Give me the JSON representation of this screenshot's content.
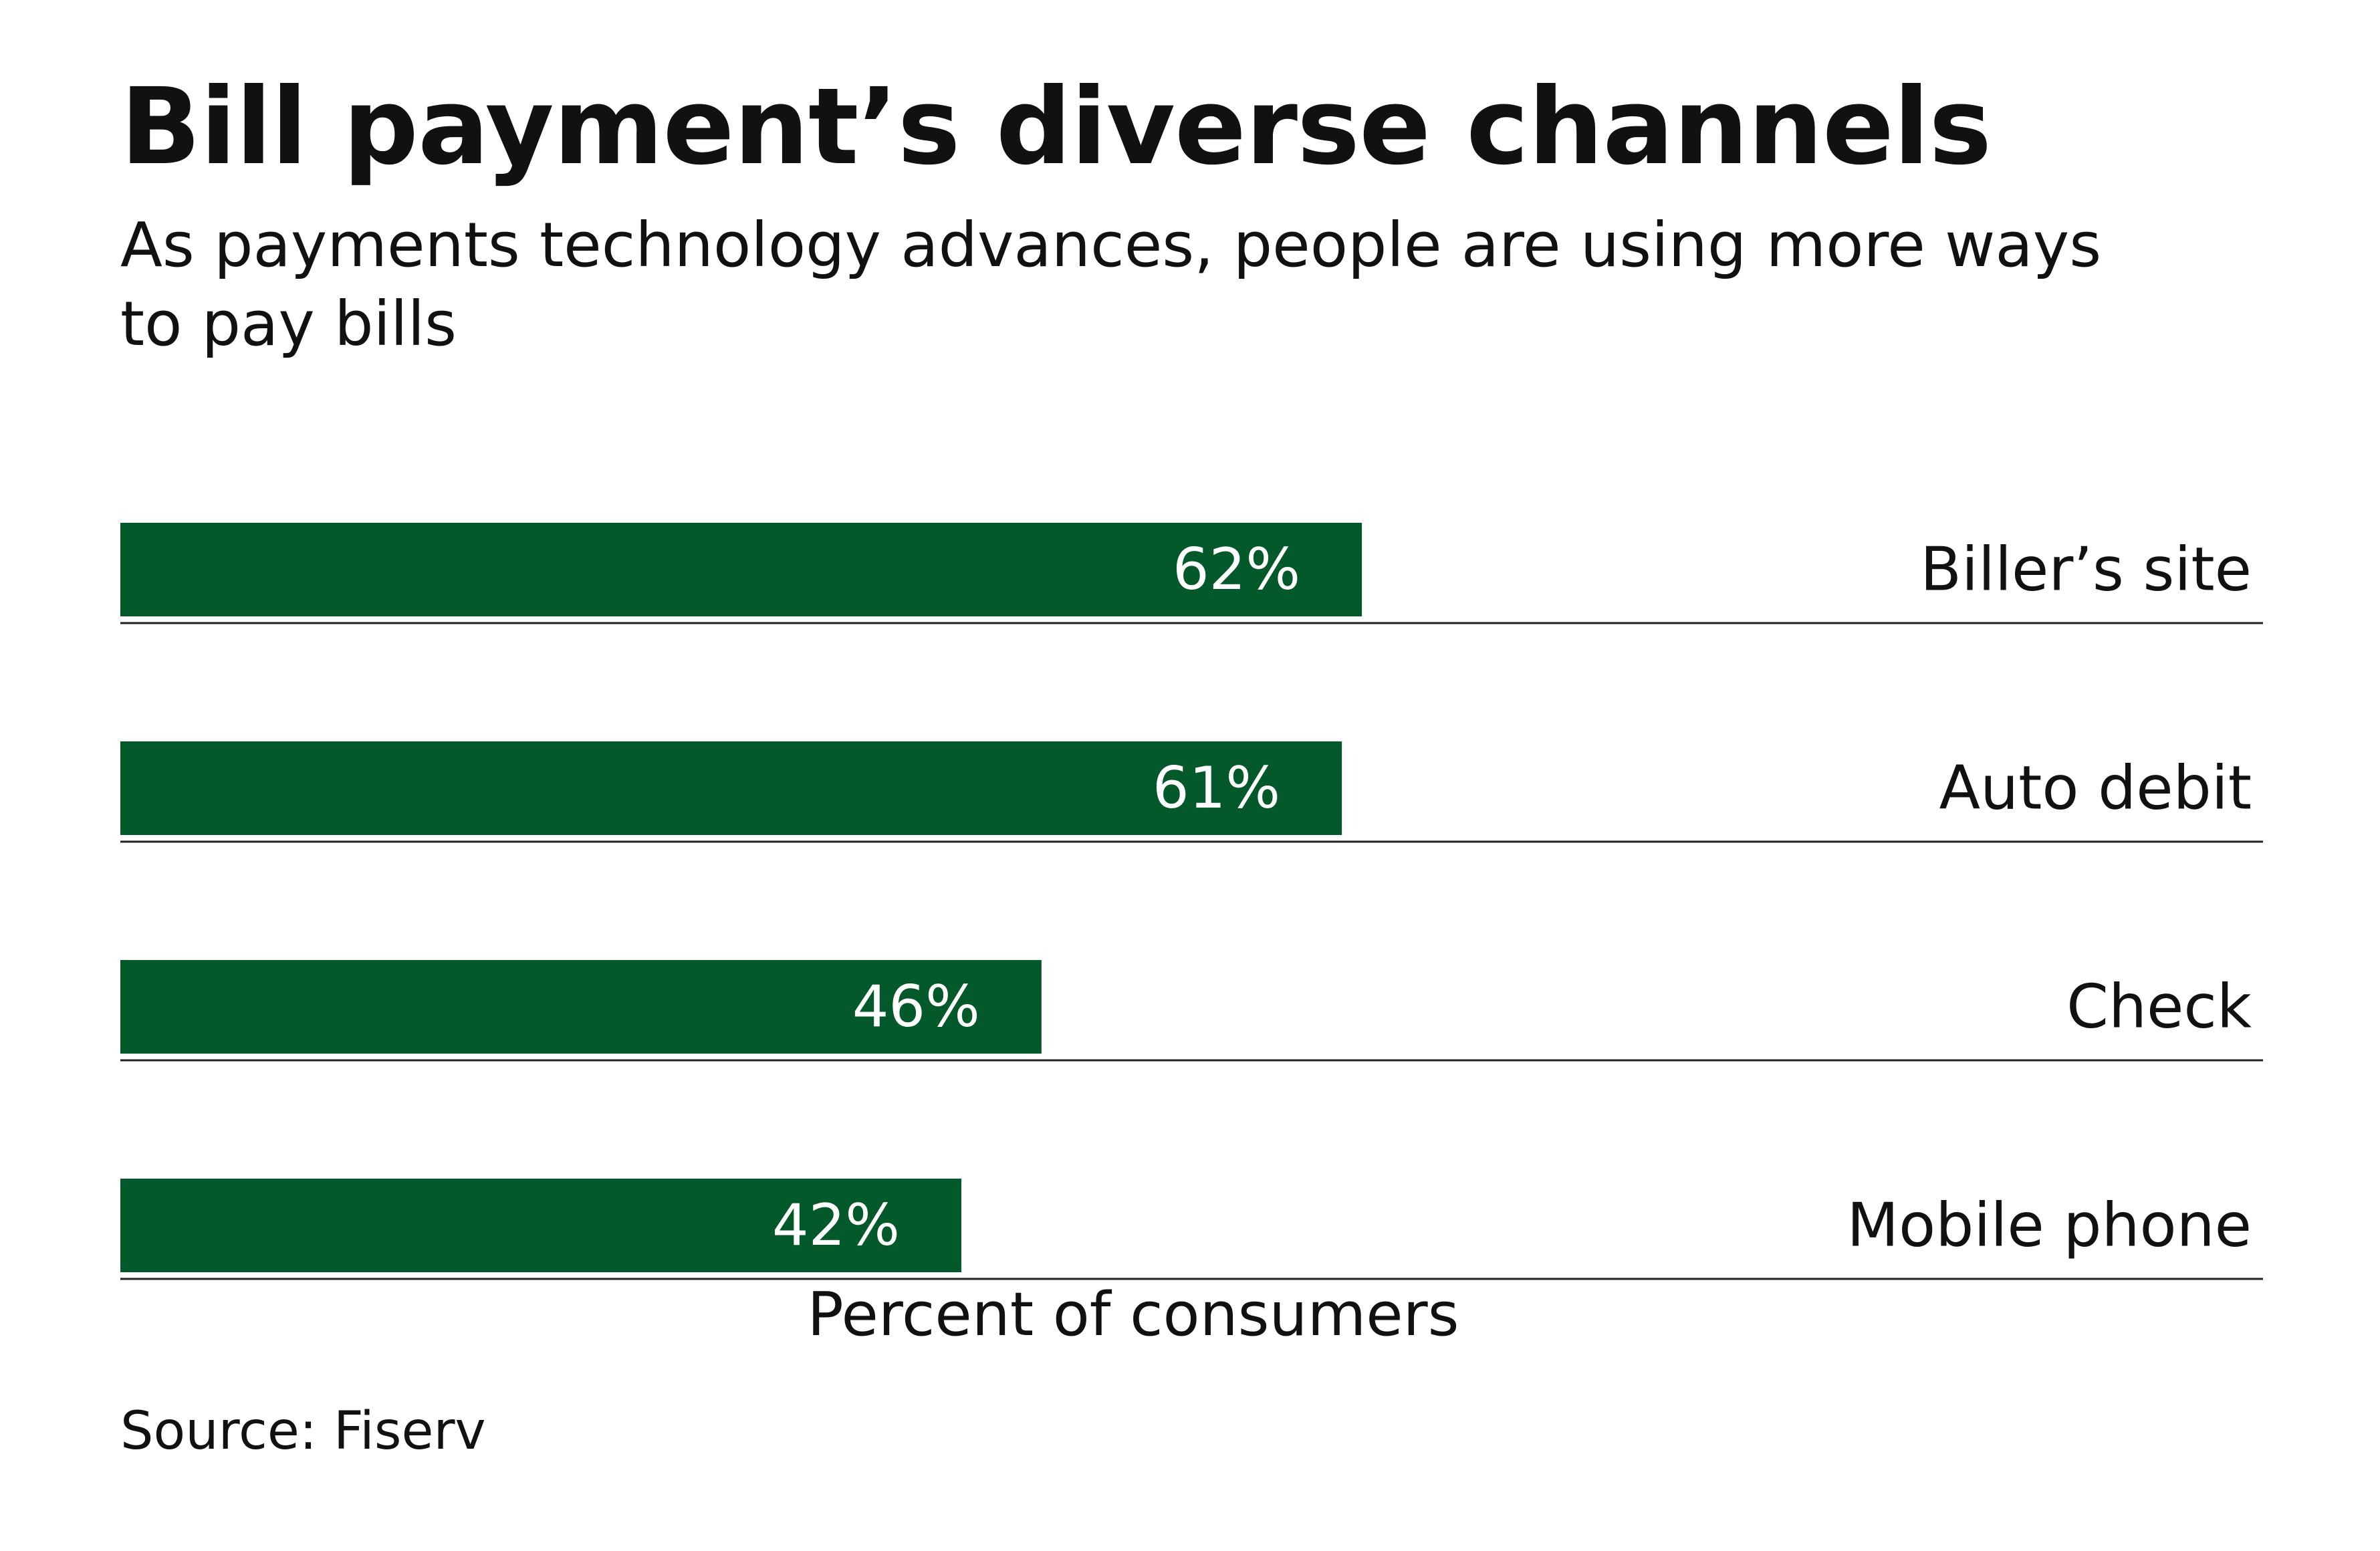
{
  "colors": {
    "bar": "#04592a",
    "value_text": "#ffffff",
    "text": "#111111",
    "rule": "#222222"
  },
  "chart_data": {
    "type": "bar",
    "orientation": "horizontal",
    "title": "Bill payment’s diverse channels",
    "subtitle": "As payments technology advances, people are using more ways to pay bills",
    "categories": [
      "Biller’s site",
      "Auto debit",
      "Check",
      "Mobile phone"
    ],
    "values": [
      62,
      61,
      46,
      42
    ],
    "value_labels": [
      "62%",
      "61%",
      "46%",
      "42%"
    ],
    "xlabel": "Percent of consumers",
    "xlim": [
      0,
      107
    ],
    "grid": false,
    "legend": "none",
    "source": "Source: Fiserv"
  }
}
